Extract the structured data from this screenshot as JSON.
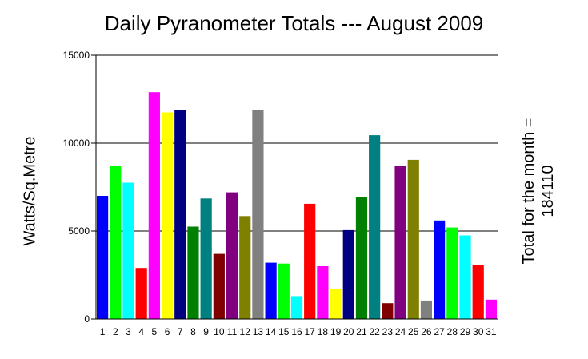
{
  "chart_data": {
    "type": "bar",
    "title": "Daily Pyranometer Totals --- August 2009",
    "xlabel": "",
    "ylabel": "Watts/Sq.Metre",
    "ylim": [
      0,
      15000
    ],
    "yticks": [
      0,
      5000,
      10000,
      15000
    ],
    "grid": "horizontal",
    "categories": [
      "1",
      "2",
      "3",
      "4",
      "5",
      "6",
      "7",
      "8",
      "9",
      "10",
      "11",
      "12",
      "13",
      "14",
      "15",
      "16",
      "17",
      "18",
      "19",
      "20",
      "21",
      "22",
      "23",
      "24",
      "25",
      "26",
      "27",
      "28",
      "29",
      "30",
      "31"
    ],
    "values": [
      7000,
      8700,
      7750,
      2900,
      12900,
      11750,
      11900,
      5250,
      6850,
      3700,
      7200,
      5850,
      11900,
      3200,
      3150,
      1300,
      6550,
      3000,
      1700,
      5050,
      6950,
      10450,
      900,
      8700,
      9050,
      1050,
      5600,
      5200,
      4750,
      3050,
      1100
    ],
    "colors": [
      "#0000ff",
      "#00ff00",
      "#00ffff",
      "#ff0000",
      "#ff00ff",
      "#ffff00",
      "#000080",
      "#008000",
      "#008080",
      "#800000",
      "#800080",
      "#808000",
      "#808080",
      "#0000ff",
      "#00ff00",
      "#00ffff",
      "#ff0000",
      "#ff00ff",
      "#ffff00",
      "#000080",
      "#008000",
      "#008080",
      "#800000",
      "#800080",
      "#808000",
      "#808080",
      "#0000ff",
      "#00ff00",
      "#00ffff",
      "#ff0000",
      "#ff00ff"
    ],
    "annotation": [
      "Total for the month =",
      "184110"
    ]
  }
}
